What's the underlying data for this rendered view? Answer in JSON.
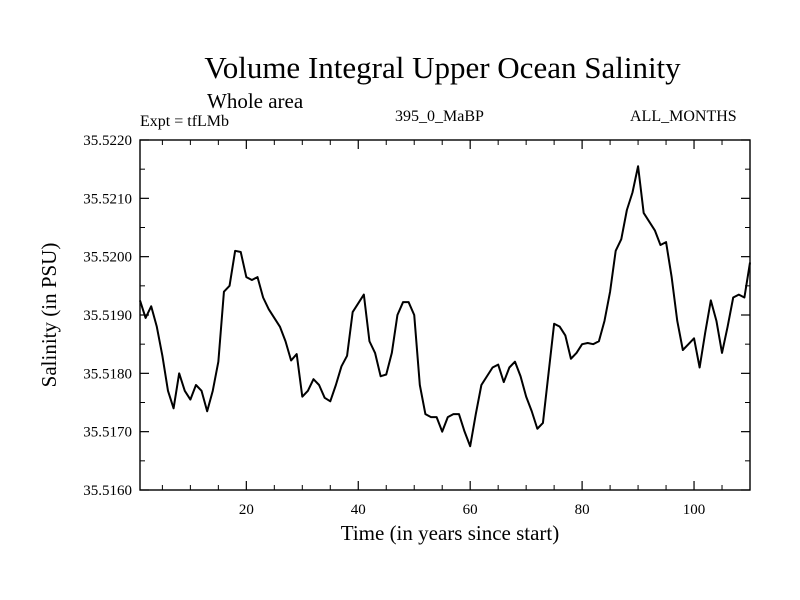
{
  "chart_data": {
    "type": "line",
    "title": "Volume Integral Upper Ocean Salinity",
    "subtitle": "Whole area",
    "experiment_label": "Expt = tfLMb",
    "run_label": "395_0_MaBP",
    "period_label": "ALL_MONTHS",
    "xlabel": "Time (in years since start)",
    "ylabel": "Salinity (in PSU)",
    "xlim": [
      1,
      110
    ],
    "ylim": [
      35.516,
      35.522
    ],
    "x_ticks": [
      20,
      40,
      60,
      80,
      100
    ],
    "y_ticks": [
      35.516,
      35.517,
      35.518,
      35.519,
      35.52,
      35.521,
      35.522
    ],
    "y_tick_labels": [
      "35.5160",
      "35.5170",
      "35.5180",
      "35.5190",
      "35.5200",
      "35.5210",
      "35.5220"
    ],
    "line_color": "#000000",
    "x": [
      1,
      2,
      3,
      4,
      5,
      6,
      7,
      8,
      9,
      10,
      11,
      12,
      13,
      14,
      15,
      16,
      17,
      18,
      19,
      20,
      21,
      22,
      23,
      24,
      25,
      26,
      27,
      28,
      29,
      30,
      31,
      32,
      33,
      34,
      35,
      36,
      37,
      38,
      39,
      40,
      41,
      42,
      43,
      44,
      45,
      46,
      47,
      48,
      49,
      50,
      51,
      52,
      53,
      54,
      55,
      56,
      57,
      58,
      59,
      60,
      61,
      62,
      63,
      64,
      65,
      66,
      67,
      68,
      69,
      70,
      71,
      72,
      73,
      74,
      75,
      76,
      77,
      78,
      79,
      80,
      81,
      82,
      83,
      84,
      85,
      86,
      87,
      88,
      89,
      90,
      91,
      92,
      93,
      94,
      95,
      96,
      97,
      98,
      99,
      100,
      101,
      102,
      103,
      104,
      105,
      106,
      107,
      108,
      109,
      110
    ],
    "values": [
      35.51925,
      35.51895,
      35.51915,
      35.5188,
      35.5183,
      35.5177,
      35.5174,
      35.518,
      35.5177,
      35.51755,
      35.5178,
      35.5177,
      35.51735,
      35.5177,
      35.5182,
      35.5194,
      35.5195,
      35.5201,
      35.52008,
      35.51965,
      35.5196,
      35.51965,
      35.5193,
      35.5191,
      35.51895,
      35.5188,
      35.51855,
      35.51822,
      35.51833,
      35.5176,
      35.5177,
      35.5179,
      35.5178,
      35.51758,
      35.51752,
      35.5178,
      35.51812,
      35.5183,
      35.51905,
      35.5192,
      35.51935,
      35.51855,
      35.51835,
      35.51795,
      35.51798,
      35.51835,
      35.519,
      35.51922,
      35.51922,
      35.519,
      35.5178,
      35.5173,
      35.51725,
      35.51725,
      35.517,
      35.51725,
      35.5173,
      35.5173,
      35.517,
      35.51675,
      35.5173,
      35.5178,
      35.51795,
      35.5181,
      35.51815,
      35.51785,
      35.5181,
      35.5182,
      35.51795,
      35.5176,
      35.51735,
      35.51705,
      35.51715,
      35.518,
      35.51885,
      35.5188,
      35.51865,
      35.51825,
      35.51835,
      35.5185,
      35.51852,
      35.5185,
      35.51855,
      35.5189,
      35.5194,
      35.5201,
      35.5203,
      35.5208,
      35.5211,
      35.52155,
      35.52075,
      35.5206,
      35.52045,
      35.5202,
      35.52025,
      35.51965,
      35.5189,
      35.5184,
      35.5185,
      35.5186,
      35.5181,
      35.5187,
      35.51925,
      35.5189,
      35.51835,
      35.5188,
      35.5193,
      35.51935,
      35.5193,
      35.5199
    ]
  }
}
